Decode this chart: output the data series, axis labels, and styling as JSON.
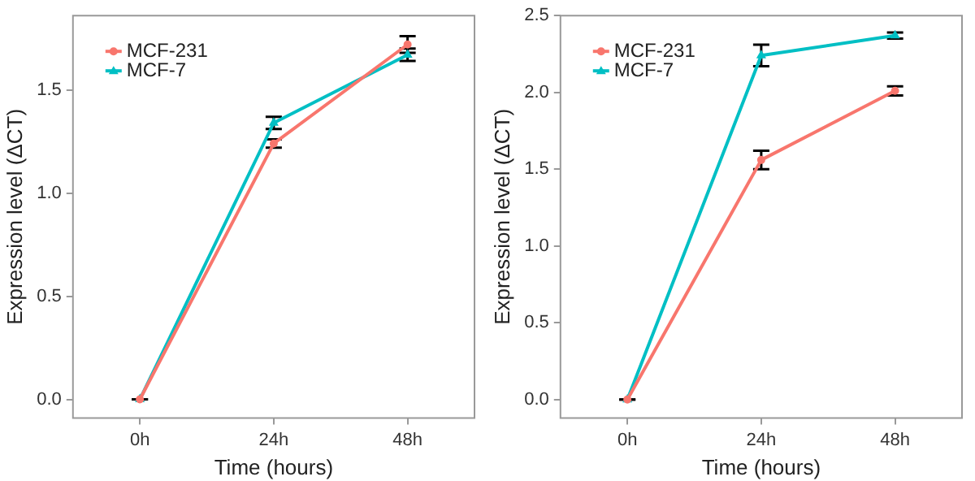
{
  "chart_data": [
    {
      "type": "line",
      "xlabel": "Time (hours)",
      "ylabel": "Expression level (ΔCT)",
      "categories": [
        "0h",
        "24h",
        "48h"
      ],
      "series": [
        {
          "name": "MCF-231",
          "color": "#f8766d",
          "marker": "circle",
          "values": [
            0,
            1.24,
            1.72
          ],
          "errors": [
            0,
            0.02,
            0.04
          ]
        },
        {
          "name": "MCF-7",
          "color": "#00bfc4",
          "marker": "triangle",
          "values": [
            0,
            1.34,
            1.67
          ],
          "errors": [
            0,
            0.03,
            0.03
          ]
        }
      ],
      "ylim": [
        -0.09,
        1.86
      ],
      "yticks": [
        {
          "value": 0,
          "label": "0.0"
        },
        {
          "value": 0.5,
          "label": "0.5"
        },
        {
          "value": 1,
          "label": "1.0"
        },
        {
          "value": 1.5,
          "label": "1.5"
        }
      ],
      "grid": false,
      "legend": "top left"
    },
    {
      "type": "line",
      "xlabel": "Time (hours)",
      "ylabel": "Expression level (ΔCT)",
      "categories": [
        "0h",
        "24h",
        "48h"
      ],
      "series": [
        {
          "name": "MCF-231",
          "color": "#f8766d",
          "marker": "circle",
          "values": [
            0,
            1.56,
            2.01
          ],
          "errors": [
            0,
            0.06,
            0.03
          ]
        },
        {
          "name": "MCF-7",
          "color": "#00bfc4",
          "marker": "triangle",
          "values": [
            0,
            2.24,
            2.37
          ],
          "errors": [
            0,
            0.07,
            0.02
          ]
        }
      ],
      "ylim": [
        -0.12,
        2.5
      ],
      "yticks": [
        {
          "value": 0,
          "label": "0.0"
        },
        {
          "value": 0.5,
          "label": "0.5"
        },
        {
          "value": 1,
          "label": "1.0"
        },
        {
          "value": 1.5,
          "label": "1.5"
        },
        {
          "value": 2,
          "label": "2.0"
        },
        {
          "value": 2.5,
          "label": "2.5"
        }
      ],
      "grid": false,
      "legend": "top left"
    }
  ]
}
